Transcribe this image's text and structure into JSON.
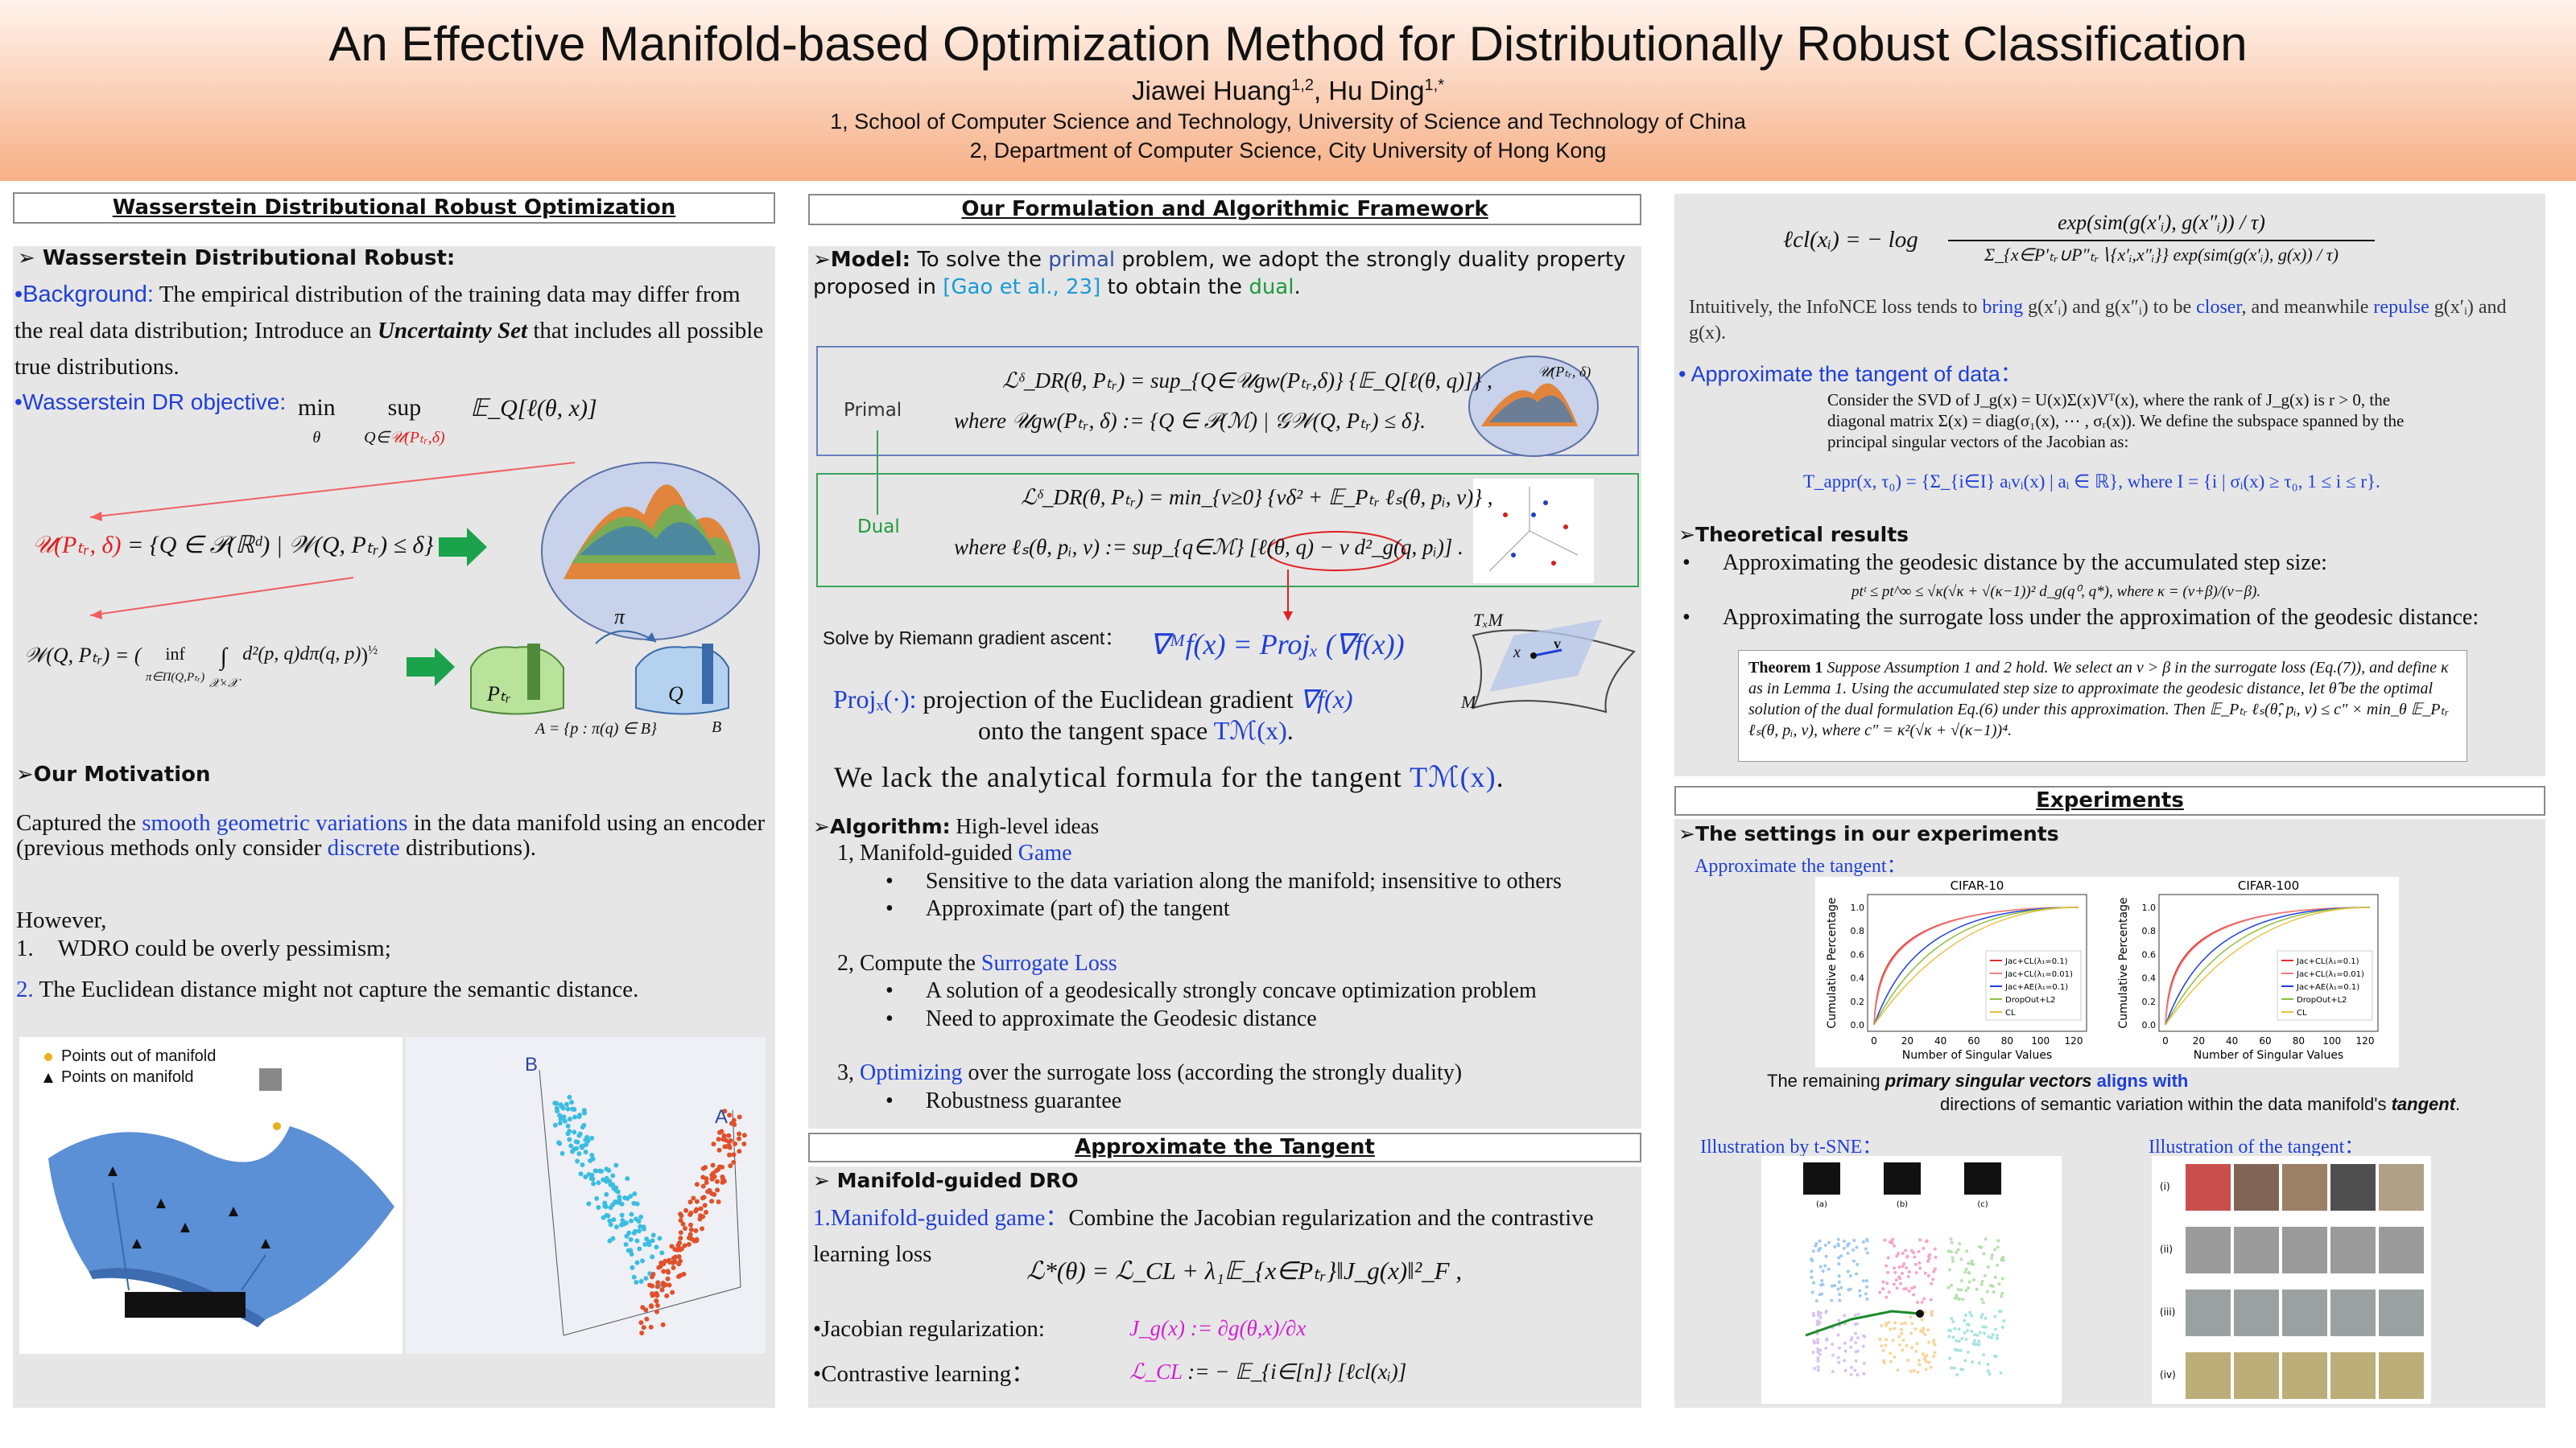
{
  "header": {
    "title": "An Effective Manifold-based Optimization Method for Distributionally Robust Classification",
    "authors": [
      {
        "name": "Jiawei Huang",
        "affiliation": "1,2"
      },
      {
        "name": ", Hu Ding",
        "affiliation": "1,*"
      }
    ],
    "affiliations": [
      "1, School of Computer Science and Technology, University of Science and Technology of China",
      "2, Department of Computer Science, City University of Hong Kong"
    ]
  },
  "wdro": {
    "heading": "Wasserstein Distributional Robust Optimization",
    "subheading": "➢ Wasserstein Distributional Robust:",
    "background": [
      "•Background:",
      " The empirical distribution of the training data may differ from the real data distribution; Introduce an ",
      "Uncertainty Set",
      " that includes all possible true distributions."
    ],
    "objective_label": "•Wasserstein DR objective:",
    "objective": {
      "min": "min",
      "min_sub": "θ",
      "sup": "sup",
      "sup_sub": "Q∈",
      "sup_sub_set": "𝒰(Pₜᵣ,δ)",
      "expr": "𝔼_Q[ℓ(θ, x)]"
    },
    "uncertainty_set": {
      "lhs": "𝒰(Pₜᵣ, δ)",
      "rhs": " = {Q ∈ 𝒫(ℝᵈ) | 𝒲(Q, Pₜᵣ) ≤ δ}"
    },
    "wasserstein": {
      "lhs": "𝒲(Q, Pₜᵣ) = (",
      "inf": "inf",
      "inf_sub": "π∈Π(Q,Pₜᵣ)",
      "integral": "∫",
      "integral_sub": "𝒳×𝒳",
      "body": "d²(p, q)dπ(q, p)",
      "close": ")",
      "power": "½"
    },
    "diagram": {
      "ptr": "Pₜᵣ",
      "q": "Q",
      "pi": "π",
      "set": "A = {p : π(q) ∈ B}",
      "b": "B"
    },
    "motivation_heading": "➢Our Motivation",
    "motivation": [
      "Captured the ",
      "smooth geometric variations",
      " in the data manifold using an encoder (previous methods only consider ",
      "discrete",
      " distributions)."
    ],
    "however": "However,",
    "points": [
      {
        "num": "1.",
        "text": "WDRO could be overly pessimism;"
      },
      {
        "num": "2.",
        "text": " The Euclidean distance might not capture the semantic distance."
      }
    ],
    "figure": {
      "legend": [
        "Points out of manifold",
        "Points on manifold"
      ],
      "labels": [
        "B",
        "A"
      ]
    }
  },
  "formulation": {
    "heading": "Our Formulation and Algorithmic Framework",
    "model": [
      "➢Model:",
      " To solve the ",
      "primal",
      " problem, we adopt the strongly duality property proposed in ",
      "[Gao et al., 23]",
      " to obtain the ",
      "dual",
      "."
    ],
    "primal": {
      "label": "Primal",
      "line1": "ℒᵟ_DR(θ, Pₜᵣ) = sup_{Q∈𝒰gw(Pₜᵣ,δ)} {𝔼_Q[ℓ(θ, q)]} ,",
      "line2": "where   𝒰gw(Pₜᵣ, δ) := {Q ∈ 𝒫(ℳ) | 𝒢𝒲(Q, Pₜᵣ) ≤ δ}.",
      "image_label": "𝒰(Pₜᵣ, δ)"
    },
    "dual": {
      "label": "Dual",
      "line1": "ℒᵟ_DR(θ, Pₜᵣ) = min_{ν≥0} {νδ² + 𝔼_Pₜᵣ ℓₛ(θ, pᵢ, ν)} ,",
      "line2": "where   ℓₛ(θ, pᵢ, ν) := sup_{q∈ℳ} [ℓ(θ, q) − ν d²_g(q, pᵢ)] ."
    },
    "solve": "Solve by Riemann gradient ascent：",
    "riemann": "∇ᴹf(x) = Projₓ (∇f(x))",
    "tangent_diagram": {
      "space": "TₓM",
      "point": "x",
      "vector": "v",
      "manifold": "M"
    },
    "proj": [
      "Projₓ(·):",
      " projection of the Euclidean gradient ",
      "∇f(x)"
    ],
    "proj2": [
      "onto the tangent space ",
      "Tℳ(x)",
      "."
    ],
    "lack": [
      "We lack the analytical formula for the tangent ",
      "Tℳ(x)",
      "."
    ],
    "algorithm": {
      "heading": "➢Algorithm:",
      "subtitle": "  High-level ideas",
      "steps": [
        {
          "text": [
            "1,  Manifold-guided ",
            "Game"
          ],
          "bullets": [
            "Sensitive to the data variation along the manifold; insensitive to others",
            "Approximate (part of) the tangent"
          ]
        },
        {
          "text": [
            "2, Compute the ",
            "Surrogate Loss"
          ],
          "bullets": [
            "A solution of a geodesically strongly concave optimization problem",
            "Need to approximate the Geodesic distance"
          ]
        },
        {
          "text": [
            "3, ",
            "Optimizing",
            " over the surrogate loss (according the strongly duality)"
          ],
          "bullets": [
            "Robustness guarantee"
          ]
        }
      ]
    }
  },
  "tangent": {
    "heading": "Approximate the Tangent",
    "subheading": "➢ Manifold-guided DRO",
    "game": [
      "1.Manifold-guided game：",
      "Combine the Jacobian regularization and the contrastive learning loss"
    ],
    "objective": "ℒ*(θ) = ℒ_CL  + λ₁𝔼_{x∈Pₜᵣ}‖J_g(x)‖²_F ,",
    "jacobian_label": "•Jacobian regularization:",
    "jacobian": "J_g(x) := ∂g(θ,x)/∂x",
    "contrastive_label": "•Contrastive learning：",
    "contrastive": {
      "lhs": "ℒ_CL",
      "rhs": "  := − 𝔼_{i∈[n]} [ℓcl(xᵢ)]"
    }
  },
  "theory": {
    "lcl": {
      "lhs": "ℓcl(xᵢ) = − log",
      "numerator": "exp(sim(g(x′ᵢ), g(x″ᵢ)) / τ)",
      "denominator": "Σ_{x∈P′ₜᵣ∪P″ₜᵣ∖{x′ᵢ,x″ᵢ}} exp(sim(g(x′ᵢ), g(x)) / τ)"
    },
    "intuition": [
      "Intuitively, the InfoNCE loss tends to ",
      "bring",
      " g(x′ᵢ) and g(x″ᵢ) to be ",
      "closer",
      ", and meanwhile ",
      "repulse",
      " g(x′ᵢ) and g(x)."
    ],
    "approx_heading": "• Approximate the tangent of data：",
    "svd": "Consider the SVD of J_g(x) = U(x)Σ(x)Vᵀ(x), where the rank of J_g(x) is r > 0, the diagonal matrix Σ(x) = diag(σ₁(x), ⋯ , σᵣ(x)).  We define the subspace spanned by the principal singular vectors of the Jacobian as:",
    "tappr": "T_appr(x, τ₀) = {Σ_{i∈I} aᵢvᵢ(x) | aᵢ ∈ ℝ}, where I = {i | σᵢ(x) ≥ τ₀, 1 ≤ i ≤ r}.",
    "results_heading": "➢Theoretical results",
    "results": [
      "Approximating the geodesic distance by the accumulated step size:",
      "Approximating the surrogate loss under the approximation of the geodesic distance:"
    ],
    "bound": "ptᵗ ≤ pt^∞ ≤ √κ(√κ + √(κ−1))² d_g(q⁰, q*),  where κ = (ν+β)/(ν−β).",
    "theorem": {
      "title": "Theorem 1",
      "text": "  Suppose Assumption 1 and 2 hold.  We select an ν > β in the surrogate loss (Eq.(7)), and define κ as in Lemma 1.  Using the accumulated step size to approximate the geodesic distance, let θ̂ be the optimal solution of the dual formulation Eq.(6) under this approximation.  Then 𝔼_Pₜᵣ ℓₛ(θ̂, pᵢ, ν) ≤ c″ × min_θ 𝔼_Pₜᵣ ℓₛ(θ, pᵢ, ν), where c″ = κ²(√κ + √(κ−1))⁴."
    }
  },
  "experiments": {
    "heading": "Experiments",
    "settings": "➢The settings in our experiments",
    "approx": "Approximate the tangent：",
    "charts": [
      {
        "title": "CIFAR-10",
        "xlabel": "Number of Singular Values",
        "ylabel": "Cumulative Percentage",
        "xticks": [
          0,
          20,
          40,
          60,
          80,
          100,
          120
        ],
        "yticks": [
          "0.0",
          "0.2",
          "0.4",
          "0.6",
          "0.8",
          "1.0"
        ],
        "legend": [
          "Jac+CL(λ₁=0.1)",
          "Jac+CL(λ₁=0.01)",
          "Jac+AE(λ₁=0.1)",
          "DropOut+L2",
          "CL"
        ]
      },
      {
        "title": "CIFAR-100",
        "xlabel": "Number of Singular Values",
        "ylabel": "Cumulative Percentage",
        "xticks": [
          0,
          20,
          40,
          60,
          80,
          100,
          120
        ],
        "yticks": [
          "0.0",
          "0.2",
          "0.4",
          "0.6",
          "0.8",
          "1.0"
        ],
        "legend": [
          "Jac+CL(λ₁=0.1)",
          "Jac+CL(λ₁=0.01)",
          "Jac+AE(λ₁=0.1)",
          "DropOut+L2",
          "CL"
        ]
      }
    ],
    "remark1": [
      "The remaining ",
      "primary singular vectors",
      " ",
      "aligns with"
    ],
    "remark2": [
      "directions of semantic variation within the data manifold's ",
      "tangent",
      "."
    ],
    "tsne": "Illustration by t-SNE：",
    "tangent_illustration": "Illustration of the tangent：",
    "tsne_panels": [
      "(a)",
      "(b)",
      "(c)"
    ],
    "rows": [
      "(i)",
      "(ii)",
      "(iii)",
      "(iv)"
    ]
  }
}
